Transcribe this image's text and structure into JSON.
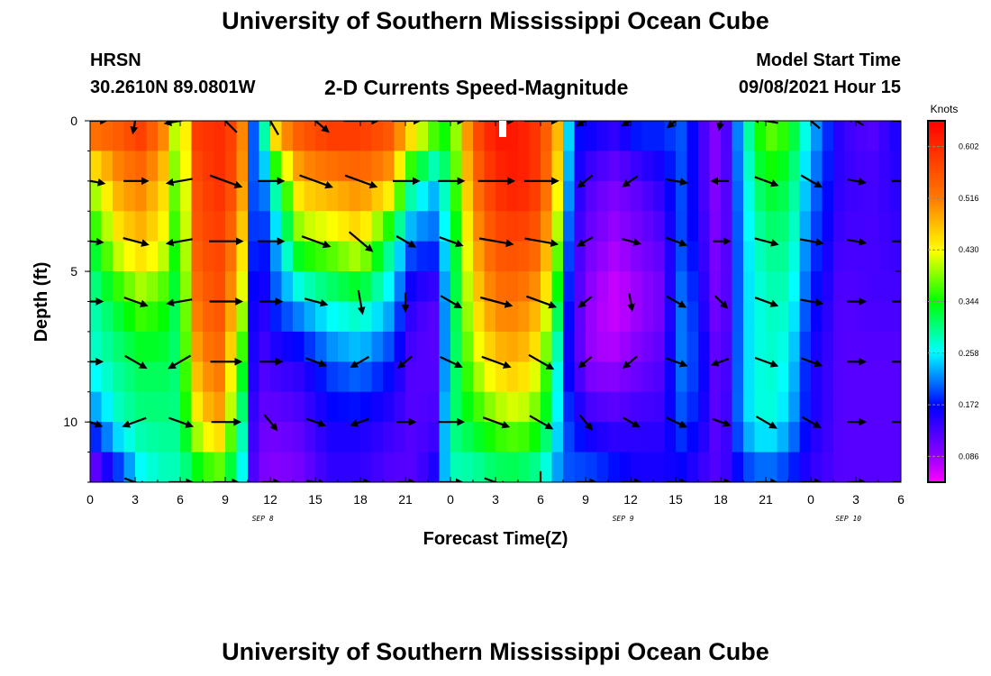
{
  "header": {
    "title": "University of Southern Mississippi Ocean Cube",
    "station": "HRSN",
    "coordinates": "30.2610N  89.0801W",
    "subtitle": "2-D Currents Speed-Magnitude",
    "model_start_label": "Model Start Time",
    "model_start_time": "09/08/2021 Hour 15"
  },
  "footer": {
    "title": "University of Southern Mississippi Ocean Cube"
  },
  "chart_data": {
    "type": "heatmap",
    "title": "2-D Currents Speed-Magnitude",
    "xlabel": "Forecast Time(Z)",
    "ylabel": "Depth (ft)",
    "x_range_hours": [
      0,
      54
    ],
    "y_range_ft": [
      0,
      12
    ],
    "x_ticks": [
      "0",
      "3",
      "6",
      "9",
      "12",
      "15",
      "18",
      "21",
      "0",
      "3",
      "6",
      "9",
      "12",
      "15",
      "18",
      "21",
      "0",
      "3",
      "6"
    ],
    "y_ticks": [
      "0",
      "5",
      "10"
    ],
    "date_labels": [
      {
        "text": "SEP 8",
        "hour": 11.5
      },
      {
        "text": "SEP 9",
        "hour": 35.5
      },
      {
        "text": "SEP 10",
        "hour": 50.5
      }
    ],
    "colorbar": {
      "unit": "Knots",
      "range": [
        0.043,
        0.645
      ],
      "ticks": [
        "0.602",
        "0.516",
        "0.430",
        "0.344",
        "0.258",
        "0.172",
        "0.086"
      ]
    },
    "depths_ft": [
      0.5,
      2,
      4,
      6,
      8,
      10,
      11.8
    ],
    "speed_profiles": [
      {
        "hour": 0,
        "values": [
          0.52,
          0.4,
          0.32,
          0.28,
          0.27,
          0.2,
          0.08
        ]
      },
      {
        "hour": 2,
        "values": [
          0.55,
          0.5,
          0.44,
          0.34,
          0.3,
          0.28,
          0.18
        ]
      },
      {
        "hour": 3.5,
        "values": [
          0.58,
          0.52,
          0.47,
          0.38,
          0.32,
          0.3,
          0.26
        ]
      },
      {
        "hour": 5,
        "values": [
          0.5,
          0.45,
          0.42,
          0.35,
          0.32,
          0.3,
          0.28
        ]
      },
      {
        "hour": 6,
        "values": [
          0.35,
          0.34,
          0.32,
          0.3,
          0.3,
          0.3,
          0.28
        ]
      },
      {
        "hour": 7,
        "values": [
          0.58,
          0.56,
          0.55,
          0.52,
          0.48,
          0.42,
          0.32
        ]
      },
      {
        "hour": 8.5,
        "values": [
          0.6,
          0.6,
          0.58,
          0.57,
          0.54,
          0.5,
          0.36
        ]
      },
      {
        "hour": 10,
        "values": [
          0.56,
          0.55,
          0.5,
          0.45,
          0.38,
          0.32,
          0.28
        ]
      },
      {
        "hour": 11,
        "values": [
          0.15,
          0.15,
          0.14,
          0.12,
          0.12,
          0.11,
          0.1
        ]
      },
      {
        "hour": 12.5,
        "values": [
          0.48,
          0.32,
          0.24,
          0.2,
          0.14,
          0.11,
          0.09
        ]
      },
      {
        "hour": 14,
        "values": [
          0.55,
          0.48,
          0.38,
          0.24,
          0.15,
          0.12,
          0.1
        ]
      },
      {
        "hour": 16,
        "values": [
          0.58,
          0.5,
          0.4,
          0.28,
          0.2,
          0.16,
          0.14
        ]
      },
      {
        "hour": 18,
        "values": [
          0.58,
          0.52,
          0.44,
          0.3,
          0.22,
          0.16,
          0.14
        ]
      },
      {
        "hour": 20,
        "values": [
          0.55,
          0.48,
          0.3,
          0.24,
          0.18,
          0.14,
          0.12
        ]
      },
      {
        "hour": 21.5,
        "values": [
          0.44,
          0.3,
          0.2,
          0.14,
          0.12,
          0.12,
          0.12
        ]
      },
      {
        "hour": 23,
        "values": [
          0.36,
          0.24,
          0.2,
          0.12,
          0.12,
          0.13,
          0.16
        ]
      },
      {
        "hour": 24,
        "values": [
          0.34,
          0.32,
          0.28,
          0.28,
          0.28,
          0.3,
          0.28
        ]
      },
      {
        "hour": 25.5,
        "values": [
          0.55,
          0.52,
          0.48,
          0.44,
          0.4,
          0.34,
          0.28
        ]
      },
      {
        "hour": 27,
        "values": [
          0.62,
          0.6,
          0.56,
          0.52,
          0.46,
          0.38,
          0.3
        ]
      },
      {
        "hour": 28.5,
        "values": [
          0.62,
          0.62,
          0.57,
          0.52,
          0.48,
          0.4,
          0.3
        ]
      },
      {
        "hour": 30,
        "values": [
          0.58,
          0.58,
          0.54,
          0.48,
          0.42,
          0.36,
          0.28
        ]
      },
      {
        "hour": 31.5,
        "values": [
          0.44,
          0.4,
          0.34,
          0.28,
          0.22,
          0.22,
          0.2
        ]
      },
      {
        "hour": 32,
        "values": [
          0.18,
          0.17,
          0.15,
          0.14,
          0.14,
          0.18,
          0.2
        ]
      },
      {
        "hour": 33.5,
        "values": [
          0.16,
          0.12,
          0.1,
          0.08,
          0.08,
          0.14,
          0.2
        ]
      },
      {
        "hour": 35,
        "values": [
          0.14,
          0.1,
          0.08,
          0.06,
          0.08,
          0.13,
          0.18
        ]
      },
      {
        "hour": 36.5,
        "values": [
          0.18,
          0.12,
          0.1,
          0.08,
          0.1,
          0.14,
          0.16
        ]
      },
      {
        "hour": 38,
        "values": [
          0.18,
          0.15,
          0.12,
          0.1,
          0.12,
          0.14,
          0.16
        ]
      },
      {
        "hour": 39.5,
        "values": [
          0.2,
          0.2,
          0.2,
          0.22,
          0.22,
          0.2,
          0.16
        ]
      },
      {
        "hour": 41,
        "values": [
          0.12,
          0.12,
          0.13,
          0.14,
          0.16,
          0.15,
          0.13
        ]
      },
      {
        "hour": 42,
        "values": [
          0.08,
          0.08,
          0.08,
          0.08,
          0.09,
          0.1,
          0.12
        ]
      },
      {
        "hour": 43.5,
        "values": [
          0.26,
          0.25,
          0.24,
          0.24,
          0.24,
          0.24,
          0.18
        ]
      },
      {
        "hour": 45,
        "values": [
          0.38,
          0.34,
          0.3,
          0.28,
          0.28,
          0.28,
          0.2
        ]
      },
      {
        "hour": 46.5,
        "values": [
          0.35,
          0.32,
          0.3,
          0.28,
          0.26,
          0.24,
          0.18
        ]
      },
      {
        "hour": 48,
        "values": [
          0.24,
          0.22,
          0.2,
          0.18,
          0.16,
          0.16,
          0.14
        ]
      },
      {
        "hour": 50,
        "values": [
          0.14,
          0.14,
          0.13,
          0.12,
          0.12,
          0.12,
          0.12
        ]
      },
      {
        "hour": 52,
        "values": [
          0.12,
          0.13,
          0.13,
          0.13,
          0.12,
          0.12,
          0.12
        ]
      },
      {
        "hour": 54,
        "values": [
          0.16,
          0.15,
          0.14,
          0.13,
          0.12,
          0.12,
          0.12
        ]
      }
    ],
    "current_vectors": {
      "hours": [
        0,
        3,
        6,
        9,
        12,
        15,
        18,
        21,
        24,
        27,
        30,
        33,
        36,
        39,
        42,
        45,
        48,
        51,
        54
      ],
      "depths_ft": [
        0,
        2,
        4,
        6,
        8,
        10,
        12
      ],
      "direction_deg": [
        [
          0,
          100,
          170,
          225,
          240,
          40,
          0,
          0,
          0,
          0,
          0,
          150,
          150,
          140,
          100,
          190,
          220,
          210,
          0
        ],
        [
          10,
          0,
          170,
          20,
          0,
          20,
          20,
          0,
          0,
          0,
          0,
          140,
          145,
          10,
          180,
          20,
          30,
          10,
          0
        ],
        [
          5,
          15,
          170,
          0,
          0,
          20,
          40,
          30,
          20,
          10,
          10,
          150,
          15,
          20,
          0,
          15,
          10,
          10,
          0
        ],
        [
          0,
          20,
          170,
          0,
          0,
          15,
          80,
          90,
          30,
          15,
          20,
          140,
          80,
          30,
          45,
          20,
          10,
          0,
          0
        ],
        [
          0,
          30,
          150,
          0,
          0,
          20,
          150,
          140,
          25,
          20,
          30,
          140,
          140,
          20,
          160,
          20,
          20,
          0,
          0
        ],
        [
          20,
          160,
          20,
          0,
          50,
          20,
          160,
          0,
          0,
          20,
          30,
          50,
          30,
          25,
          20,
          30,
          30,
          0,
          0
        ],
        [
          30,
          20,
          0,
          0,
          0,
          10,
          0,
          0,
          0,
          20,
          90,
          0,
          0,
          0,
          0,
          0,
          0,
          0,
          0
        ]
      ],
      "speed_kt": [
        [
          0.5,
          0.3,
          0.45,
          0.56,
          0.55,
          0.55,
          0.58,
          0.4,
          0.34,
          0.6,
          0.56,
          0.16,
          0.14,
          0.18,
          0.1,
          0.34,
          0.3,
          0.14,
          0.16
        ],
        [
          0.4,
          0.3,
          0.34,
          0.55,
          0.34,
          0.58,
          0.55,
          0.35,
          0.34,
          0.62,
          0.56,
          0.14,
          0.12,
          0.22,
          0.1,
          0.3,
          0.28,
          0.12,
          0.16
        ],
        [
          0.3,
          0.34,
          0.34,
          0.55,
          0.34,
          0.45,
          0.46,
          0.22,
          0.3,
          0.56,
          0.54,
          0.1,
          0.14,
          0.22,
          0.1,
          0.28,
          0.26,
          0.14,
          0.14
        ],
        [
          0.28,
          0.3,
          0.32,
          0.52,
          0.24,
          0.26,
          0.28,
          0.14,
          0.28,
          0.52,
          0.48,
          0.08,
          0.1,
          0.22,
          0.1,
          0.28,
          0.24,
          0.13,
          0.14
        ],
        [
          0.27,
          0.3,
          0.32,
          0.48,
          0.24,
          0.22,
          0.2,
          0.12,
          0.28,
          0.46,
          0.4,
          0.08,
          0.12,
          0.24,
          0.12,
          0.28,
          0.22,
          0.12,
          0.14
        ],
        [
          0.28,
          0.3,
          0.32,
          0.42,
          0.18,
          0.16,
          0.14,
          0.14,
          0.32,
          0.38,
          0.34,
          0.14,
          0.14,
          0.24,
          0.14,
          0.26,
          0.2,
          0.12,
          0.14
        ],
        [
          0.2,
          0.28,
          0.28,
          0.32,
          0.12,
          0.14,
          0.12,
          0.12,
          0.26,
          0.3,
          0.26,
          0.18,
          0.16,
          0.18,
          0.14,
          0.2,
          0.16,
          0.12,
          0.14
        ]
      ]
    }
  }
}
